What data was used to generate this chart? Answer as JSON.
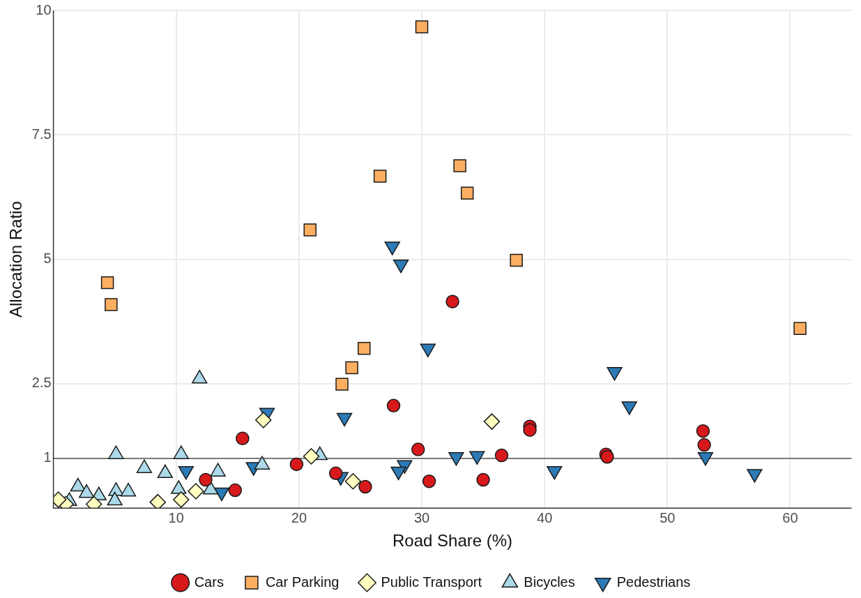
{
  "chart_data": {
    "type": "scatter",
    "xlabel": "Road Share (%)",
    "ylabel": "Allocation Ratio",
    "xlim": [
      0,
      65
    ],
    "ylim": [
      0,
      10
    ],
    "xticks": [
      10,
      20,
      30,
      40,
      50,
      60
    ],
    "yticks": [
      1,
      2.5,
      5,
      7.5,
      10
    ],
    "grid": true,
    "legend": "bottom",
    "ref_lines": [
      {
        "axis": "y",
        "value": 1,
        "color": "#555555"
      }
    ],
    "series": [
      {
        "name": "Cars",
        "color": "#d7191c",
        "marker": "circle",
        "x": [
          15.4,
          19.8,
          12.4,
          14.8,
          27.7,
          23.0,
          25.4,
          29.7,
          30.6,
          35.0,
          36.5,
          38.8,
          38.8,
          45.0,
          45.1,
          52.9,
          53.0,
          32.5
        ],
        "values": [
          1.4,
          0.88,
          0.57,
          0.36,
          2.06,
          0.7,
          0.43,
          1.18,
          0.54,
          0.57,
          1.06,
          1.64,
          1.57,
          1.08,
          1.03,
          1.55,
          1.27,
          4.15
        ]
      },
      {
        "name": "Car Parking",
        "color": "#fdae61",
        "marker": "square",
        "x": [
          4.4,
          4.7,
          20.9,
          37.7,
          25.3,
          24.3,
          23.5,
          30.0,
          26.6,
          33.1,
          33.7,
          60.8
        ],
        "values": [
          4.53,
          4.09,
          5.59,
          4.98,
          3.21,
          2.82,
          2.49,
          9.67,
          6.67,
          6.88,
          6.33,
          3.61
        ]
      },
      {
        "name": "Public Transport",
        "color": "#ffffbf",
        "marker": "diamond",
        "x": [
          17.1,
          21.0,
          11.6,
          8.5,
          10.4,
          3.3,
          1.0,
          0.4,
          24.4,
          35.7
        ],
        "values": [
          1.77,
          1.04,
          0.34,
          0.12,
          0.17,
          0.08,
          0.08,
          0.17,
          0.54,
          1.74
        ]
      },
      {
        "name": "Bicycles",
        "color": "#abd9e9",
        "marker": "triangle",
        "x": [
          11.9,
          5.1,
          10.4,
          7.4,
          9.1,
          13.4,
          17.0,
          21.7,
          2.0,
          2.7,
          3.7,
          5.1,
          6.1,
          10.2,
          5.0,
          1.3,
          12.8
        ],
        "values": [
          2.6,
          1.08,
          1.08,
          0.8,
          0.7,
          0.73,
          0.87,
          1.06,
          0.43,
          0.3,
          0.25,
          0.34,
          0.33,
          0.38,
          0.15,
          0.14,
          0.37
        ]
      },
      {
        "name": "Pedestrians",
        "color": "#2c7bb6",
        "marker": "triangle-down",
        "x": [
          17.4,
          10.8,
          16.3,
          13.7,
          23.7,
          23.4,
          28.6,
          28.1,
          32.8,
          34.5,
          40.8,
          45.7,
          46.9,
          53.1,
          57.1,
          27.6,
          28.3,
          30.5
        ],
        "values": [
          1.92,
          0.75,
          0.83,
          0.32,
          1.82,
          0.63,
          0.87,
          0.74,
          1.03,
          1.05,
          0.75,
          2.74,
          2.05,
          1.03,
          0.69,
          5.26,
          4.9,
          3.21
        ]
      }
    ]
  }
}
